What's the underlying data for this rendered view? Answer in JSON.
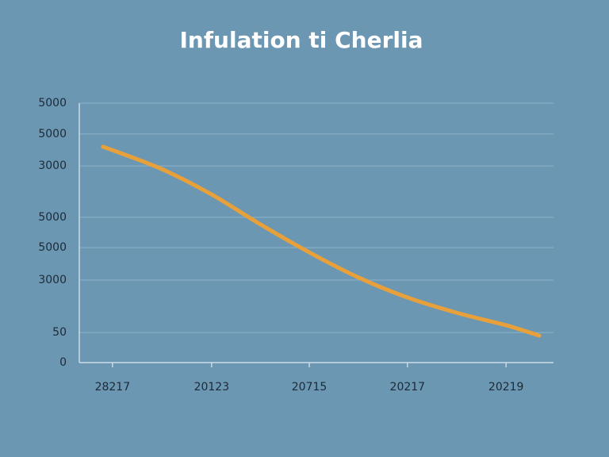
{
  "chart_data": {
    "type": "line",
    "title": "Infulation ti Cherlia",
    "x": [
      5.0,
      17.0,
      27.9,
      38.0,
      48.5,
      59.0,
      69.2,
      80.0,
      90.0,
      97.0
    ],
    "values": [
      83.2,
      74.9,
      64.8,
      53.5,
      42.5,
      32.7,
      25.1,
      19.0,
      14.4,
      10.4
    ],
    "color": "#e8a13a",
    "xlim": [
      0,
      100
    ],
    "xticks": [
      {
        "value": 7.0,
        "label": "28217"
      },
      {
        "value": 27.9,
        "label": "20123"
      },
      {
        "value": 48.5,
        "label": "20715"
      },
      {
        "value": 69.2,
        "label": "20217"
      },
      {
        "value": 90.0,
        "label": "20219"
      }
    ],
    "ylim": [
      0,
      100
    ],
    "yticks": [
      0,
      {
        "value": 11.6,
        "label": "50"
      },
      {
        "value": 31.8,
        "label": "3000"
      },
      {
        "value": 44.3,
        "label": "5000"
      },
      {
        "value": 56.0,
        "label": "5000"
      },
      {
        "value": 75.8,
        "label": "3000"
      },
      {
        "value": 88.1,
        "label": "5000"
      },
      {
        "value": 100,
        "label": "5000"
      }
    ],
    "grid": true
  }
}
